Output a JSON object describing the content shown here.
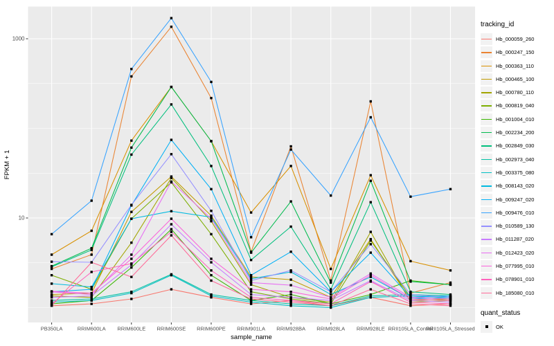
{
  "chart_data": {
    "type": "line",
    "xlabel": "sample_name",
    "ylabel": "FPKM + 1",
    "y_scale": "log10",
    "ylim": [
      0.69,
      2265
    ],
    "grid": "on",
    "panel_background": "#EBEBEB",
    "gridline_color": "#FFFFFF",
    "point_color": "#000000",
    "y_ticks": [
      {
        "label": "10",
        "value": 10
      },
      {
        "label": "1000",
        "value": 1000
      }
    ],
    "y_minor_gridlines": [
      1,
      3.1623,
      31.623,
      100,
      316.23
    ],
    "x_categories": [
      "PB350LA",
      "RRIM600LA",
      "RRIM600LE",
      "RRIM600SE",
      "RRIM600PE",
      "RRIM901LA",
      "RRIM928BA",
      "RRIM928LA",
      "RRIM928LE",
      "RRII105LA_Control",
      "RRII105LA_Stressed"
    ],
    "series": [
      {
        "name": "Hb_000059_260",
        "color": "#F8766D",
        "values": [
          1.05,
          1.1,
          1.25,
          1.6,
          1.3,
          1.1,
          1.2,
          1.05,
          1.3,
          1.05,
          1.1
        ]
      },
      {
        "name": "Hb_000247_150",
        "color": "#EA8331",
        "values": [
          2.7,
          3.9,
          380,
          1360,
          218,
          4.2,
          63,
          2.0,
          200,
          1.45,
          1.9
        ]
      },
      {
        "name": "Hb_000363_110",
        "color": "#D89000",
        "values": [
          3.9,
          7.2,
          73,
          290,
          72,
          11.5,
          38,
          2.7,
          30,
          3.3,
          2.6
        ]
      },
      {
        "name": "Hb_000465_100",
        "color": "#C09B00",
        "values": [
          1.4,
          1.45,
          11.7,
          29,
          10.6,
          2.2,
          2.05,
          1.3,
          5.8,
          1.2,
          1.25
        ]
      },
      {
        "name": "Hb_000780_110",
        "color": "#A3A500",
        "values": [
          1.35,
          1.3,
          5.3,
          28,
          9.2,
          1.8,
          1.3,
          1.15,
          7.0,
          1.15,
          1.2
        ]
      },
      {
        "name": "Hb_000819_040",
        "color": "#7CAE00",
        "values": [
          2.3,
          1.6,
          9.8,
          25,
          6.6,
          1.5,
          1.25,
          1.1,
          5.6,
          1.3,
          1.25
        ]
      },
      {
        "name": "Hb_001004_010",
        "color": "#39B600",
        "values": [
          1.1,
          1.2,
          2.8,
          7.5,
          2.3,
          1.2,
          1.4,
          1.1,
          1.4,
          2.0,
          1.8
        ]
      },
      {
        "name": "Hb_002234_200",
        "color": "#00BB4E",
        "values": [
          2.9,
          4.6,
          61,
          290,
          72,
          4.1,
          15.3,
          1.9,
          26,
          1.95,
          1.8
        ]
      },
      {
        "name": "Hb_002849_030",
        "color": "#00BF7D",
        "values": [
          2.85,
          4.4,
          51,
          185,
          38,
          3.4,
          8.0,
          1.6,
          15,
          1.5,
          1.4
        ]
      },
      {
        "name": "Hb_002973_040",
        "color": "#00C1A3",
        "values": [
          1.2,
          1.25,
          1.5,
          2.35,
          1.4,
          1.2,
          1.1,
          1.05,
          1.35,
          1.4,
          1.35
        ]
      },
      {
        "name": "Hb_003375_080",
        "color": "#00BFC4",
        "values": [
          1.15,
          1.2,
          1.45,
          2.3,
          1.35,
          1.15,
          1.05,
          1.0,
          1.3,
          1.35,
          1.3
        ]
      },
      {
        "name": "Hb_008143_020",
        "color": "#00BAE0",
        "values": [
          1.85,
          1.7,
          9.8,
          11.9,
          10.2,
          2.1,
          2.5,
          1.4,
          2.2,
          1.25,
          1.3
        ]
      },
      {
        "name": "Hb_009247_020",
        "color": "#00B0F6",
        "values": [
          1.5,
          1.6,
          13.8,
          74.5,
          21,
          2.3,
          4.2,
          1.5,
          4.1,
          1.3,
          1.35
        ]
      },
      {
        "name": "Hb_009476_010",
        "color": "#35A2FF",
        "values": [
          6.6,
          15.6,
          460,
          1700,
          330,
          6.1,
          58,
          17.8,
          133,
          17.3,
          21
        ]
      },
      {
        "name": "Hb_010589_130",
        "color": "#9590FF",
        "values": [
          3.25,
          3.2,
          14,
          51.5,
          12,
          2.0,
          2.6,
          1.5,
          5.1,
          1.4,
          1.3
        ]
      },
      {
        "name": "Hb_011287_020",
        "color": "#C77CFF",
        "values": [
          1.3,
          1.35,
          3.0,
          8.5,
          3.2,
          1.4,
          1.3,
          1.2,
          2.0,
          1.2,
          1.15
        ]
      },
      {
        "name": "Hb_012423_020",
        "color": "#E76BF3",
        "values": [
          1.5,
          1.4,
          3.9,
          25.5,
          9.8,
          1.9,
          1.78,
          1.3,
          2.4,
          1.3,
          1.25
        ]
      },
      {
        "name": "Hb_077995_010",
        "color": "#FA62DB",
        "values": [
          1.52,
          1.45,
          3.5,
          9.8,
          3.5,
          1.6,
          1.5,
          1.25,
          2.3,
          1.25,
          1.2
        ]
      },
      {
        "name": "Hb_078901_010",
        "color": "#FF62BC",
        "values": [
          1.1,
          2.5,
          3.1,
          7.0,
          2.6,
          1.3,
          1.2,
          1.1,
          1.95,
          1.15,
          1.1
        ]
      },
      {
        "name": "Hb_185080_010",
        "color": "#FF6A98",
        "values": [
          1.05,
          3.2,
          2.2,
          6.4,
          2.0,
          1.25,
          1.15,
          1.05,
          1.6,
          1.1,
          1.05
        ]
      }
    ],
    "legend_position": "right"
  },
  "legend": {
    "title": "tracking_id"
  },
  "legend2": {
    "title": "quant_status",
    "items": [
      {
        "label": "OK"
      }
    ]
  }
}
